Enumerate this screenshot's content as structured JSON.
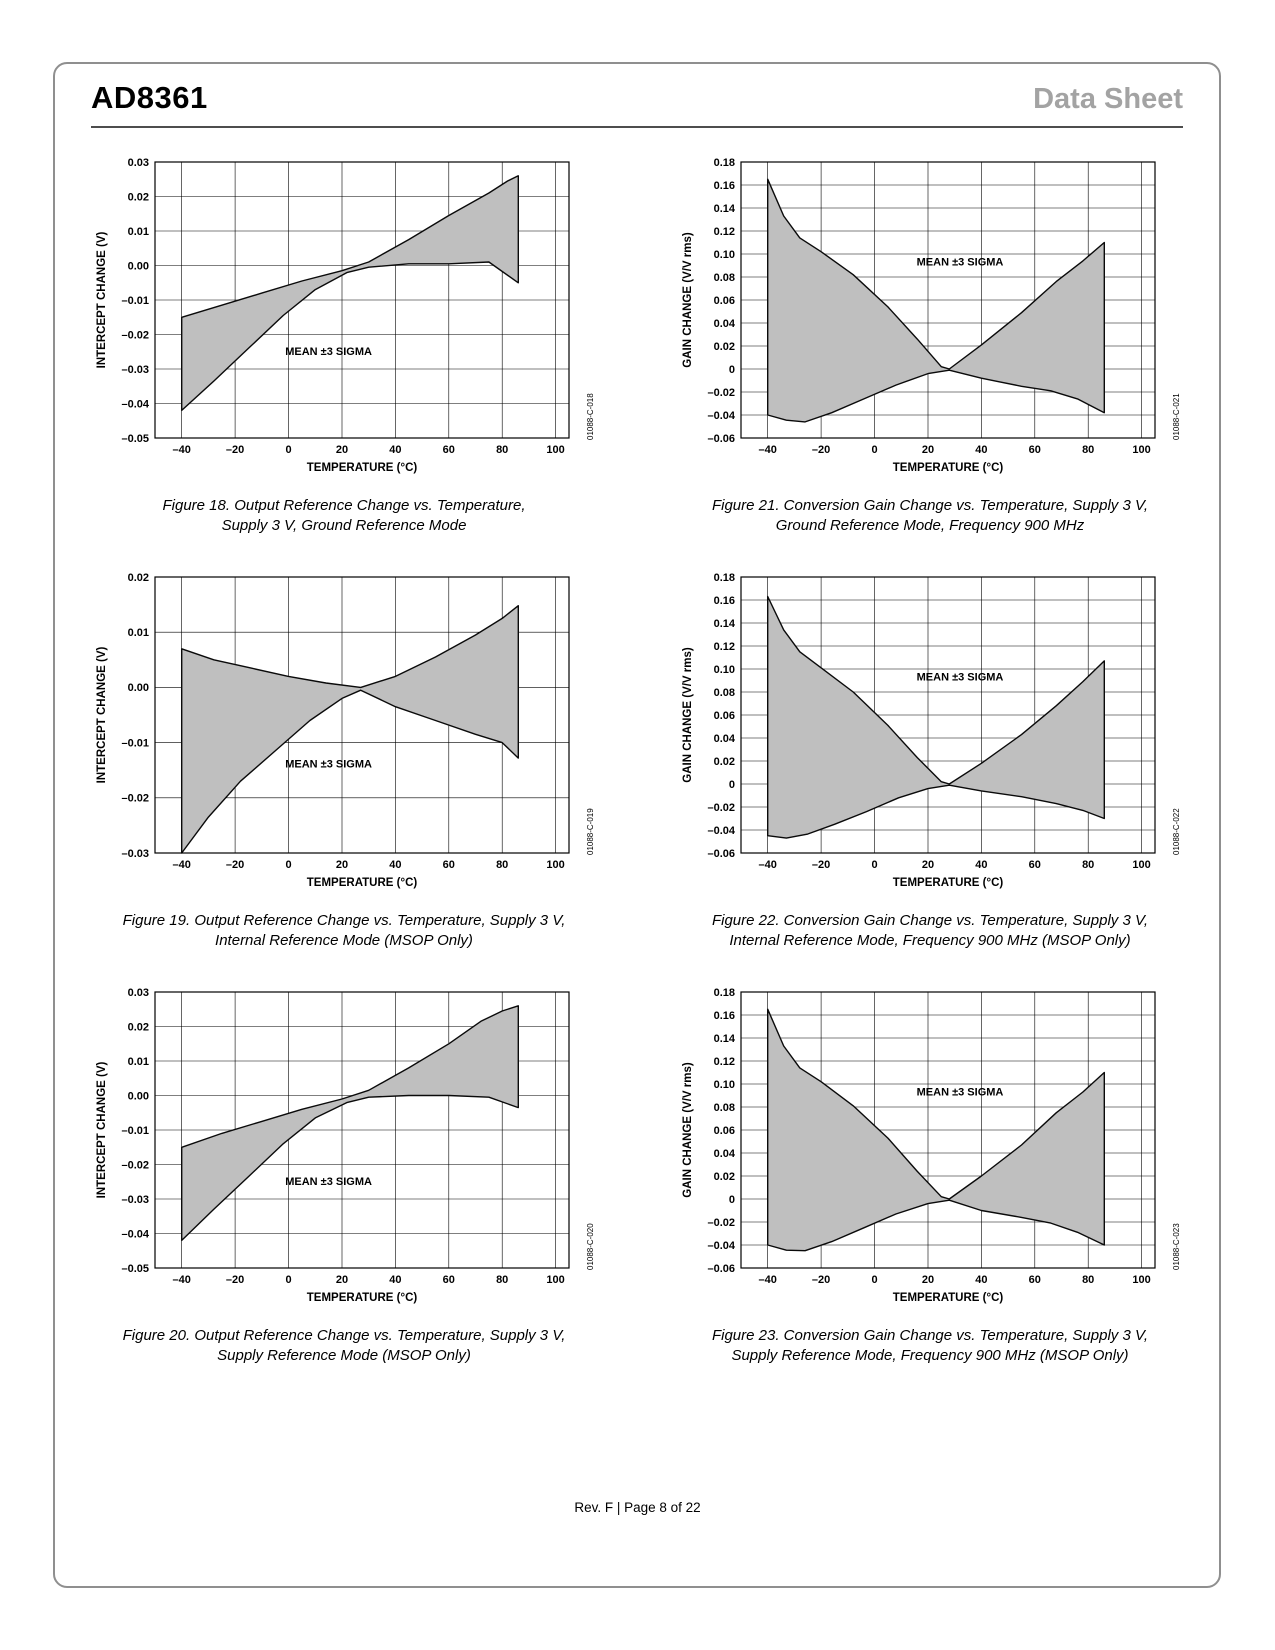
{
  "header": {
    "product": "AD8361",
    "doc_type": "Data Sheet"
  },
  "footer": {
    "text": "Rev. F | Page 8 of 22"
  },
  "colors": {
    "band_fill": "#bfbfbf",
    "band_stroke": "#0a0a0a",
    "grid": "#000000"
  },
  "chart_data": [
    {
      "name": "figure-18",
      "type": "area",
      "code": "01088-C-018",
      "xlabel": "TEMPERATURE (°C)",
      "ylabel": "INTERCEPT CHANGE (V)",
      "xlim": [
        -50,
        105
      ],
      "ylim": [
        -0.05,
        0.03
      ],
      "xticks": [
        -40,
        -20,
        0,
        20,
        40,
        60,
        80,
        100
      ],
      "xtick_labels": [
        "–40",
        "–20",
        "0",
        "20",
        "40",
        "60",
        "80",
        "100"
      ],
      "yticks": [
        0.03,
        0.02,
        0.01,
        0,
        -0.01,
        -0.02,
        -0.03,
        -0.04,
        -0.05
      ],
      "ytick_labels": [
        "0.03",
        "0.02",
        "0.01",
        "0.00",
        "–0.01",
        "–0.02",
        "–0.03",
        "–0.04",
        "–0.05"
      ],
      "annotation": {
        "text": "MEAN ±3 SIGMA",
        "x": 15,
        "y": -0.026
      },
      "series": [
        {
          "name": "mean_plus_3_sigma",
          "points": [
            [
              -40,
              -0.015
            ],
            [
              -25,
              -0.0115
            ],
            [
              -10,
              -0.008
            ],
            [
              5,
              -0.0045
            ],
            [
              20,
              -0.0015
            ],
            [
              30,
              0.001
            ],
            [
              45,
              0.0075
            ],
            [
              60,
              0.0145
            ],
            [
              75,
              0.021
            ],
            [
              82,
              0.0245
            ],
            [
              86,
              0.026
            ]
          ]
        },
        {
          "name": "mean_minus_3_sigma",
          "points": [
            [
              -40,
              -0.042
            ],
            [
              -28,
              -0.0335
            ],
            [
              -15,
              -0.024
            ],
            [
              -2,
              -0.0145
            ],
            [
              10,
              -0.007
            ],
            [
              22,
              -0.002
            ],
            [
              30,
              -0.0005
            ],
            [
              45,
              0.0005
            ],
            [
              60,
              0.0005
            ],
            [
              75,
              0.001
            ],
            [
              86,
              -0.005
            ]
          ]
        }
      ],
      "caption1": "Figure 18. Output Reference Change vs. Temperature,",
      "caption2": "Supply 3 V, Ground Reference Mode"
    },
    {
      "name": "figure-19",
      "type": "area",
      "code": "01088-C-019",
      "xlabel": "TEMPERATURE (°C)",
      "ylabel": "INTERCEPT CHANGE (V)",
      "xlim": [
        -50,
        105
      ],
      "ylim": [
        -0.03,
        0.02
      ],
      "xticks": [
        -40,
        -20,
        0,
        20,
        40,
        60,
        80,
        100
      ],
      "xtick_labels": [
        "–40",
        "–20",
        "0",
        "20",
        "40",
        "60",
        "80",
        "100"
      ],
      "yticks": [
        0.02,
        0.01,
        0,
        -0.01,
        -0.02,
        -0.03
      ],
      "ytick_labels": [
        "0.02",
        "0.01",
        "0.00",
        "–0.01",
        "–0.02",
        "–0.03"
      ],
      "annotation": {
        "text": "MEAN ±3 SIGMA",
        "x": 15,
        "y": -0.0145
      },
      "series": [
        {
          "name": "mean_plus_3_sigma",
          "points": [
            [
              -40,
              0.007
            ],
            [
              -28,
              0.005
            ],
            [
              -14,
              0.0035
            ],
            [
              0,
              0.002
            ],
            [
              14,
              0.0008
            ],
            [
              27,
              0.0
            ],
            [
              40,
              0.002
            ],
            [
              55,
              0.0055
            ],
            [
              70,
              0.0095
            ],
            [
              80,
              0.0125
            ],
            [
              86,
              0.0148
            ]
          ]
        },
        {
          "name": "mean_minus_3_sigma",
          "points": [
            [
              -40,
              -0.03
            ],
            [
              -30,
              -0.0235
            ],
            [
              -18,
              -0.017
            ],
            [
              -5,
              -0.0115
            ],
            [
              8,
              -0.006
            ],
            [
              20,
              -0.002
            ],
            [
              27,
              -0.0005
            ],
            [
              40,
              -0.0035
            ],
            [
              55,
              -0.006
            ],
            [
              70,
              -0.0085
            ],
            [
              80,
              -0.01
            ],
            [
              86,
              -0.0128
            ]
          ]
        }
      ],
      "caption1": "Figure 19. Output Reference Change vs. Temperature, Supply 3 V,",
      "caption2": "Internal Reference Mode (MSOP Only)"
    },
    {
      "name": "figure-20",
      "type": "area",
      "code": "01088-C-020",
      "xlabel": "TEMPERATURE (°C)",
      "ylabel": "INTERCEPT CHANGE (V)",
      "xlim": [
        -50,
        105
      ],
      "ylim": [
        -0.05,
        0.03
      ],
      "xticks": [
        -40,
        -20,
        0,
        20,
        40,
        60,
        80,
        100
      ],
      "xtick_labels": [
        "–40",
        "–20",
        "0",
        "20",
        "40",
        "60",
        "80",
        "100"
      ],
      "yticks": [
        0.03,
        0.02,
        0.01,
        0,
        -0.01,
        -0.02,
        -0.03,
        -0.04,
        -0.05
      ],
      "ytick_labels": [
        "0.03",
        "0.02",
        "0.01",
        "0.00",
        "–0.01",
        "–0.02",
        "–0.03",
        "–0.04",
        "–0.05"
      ],
      "annotation": {
        "text": "MEAN ±3 SIGMA",
        "x": 15,
        "y": -0.026
      },
      "series": [
        {
          "name": "mean_plus_3_sigma",
          "points": [
            [
              -40,
              -0.015
            ],
            [
              -25,
              -0.011
            ],
            [
              -10,
              -0.0075
            ],
            [
              5,
              -0.004
            ],
            [
              20,
              -0.001
            ],
            [
              30,
              0.0015
            ],
            [
              45,
              0.008
            ],
            [
              60,
              0.015
            ],
            [
              72,
              0.0215
            ],
            [
              80,
              0.0245
            ],
            [
              86,
              0.026
            ]
          ]
        },
        {
          "name": "mean_minus_3_sigma",
          "points": [
            [
              -40,
              -0.042
            ],
            [
              -28,
              -0.033
            ],
            [
              -15,
              -0.0235
            ],
            [
              -2,
              -0.014
            ],
            [
              10,
              -0.0065
            ],
            [
              22,
              -0.002
            ],
            [
              30,
              -0.0005
            ],
            [
              45,
              0.0
            ],
            [
              60,
              0.0
            ],
            [
              75,
              -0.0005
            ],
            [
              86,
              -0.0035
            ]
          ]
        }
      ],
      "caption1": "Figure 20. Output Reference Change vs. Temperature, Supply 3 V,",
      "caption2": "Supply Reference Mode (MSOP Only)"
    },
    {
      "name": "figure-21",
      "type": "area",
      "code": "01088-C-021",
      "xlabel": "TEMPERATURE (°C)",
      "ylabel": "GAIN CHANGE (V/V rms)",
      "xlim": [
        -50,
        105
      ],
      "ylim": [
        -0.06,
        0.18
      ],
      "xticks": [
        -40,
        -20,
        0,
        20,
        40,
        60,
        80,
        100
      ],
      "xtick_labels": [
        "–40",
        "–20",
        "0",
        "20",
        "40",
        "60",
        "80",
        "100"
      ],
      "yticks": [
        0.18,
        0.16,
        0.14,
        0.12,
        0.1,
        0.08,
        0.06,
        0.04,
        0.02,
        0,
        -0.02,
        -0.04,
        -0.06
      ],
      "ytick_labels": [
        "0.18",
        "0.16",
        "0.14",
        "0.12",
        "0.10",
        "0.08",
        "0.06",
        "0.04",
        "0.02",
        "0",
        "–0.02",
        "–0.04",
        "–0.06"
      ],
      "annotation": {
        "text": "MEAN ±3 SIGMA",
        "x": 32,
        "y": 0.09
      },
      "series": [
        {
          "name": "mean_plus_3_sigma",
          "points": [
            [
              -40,
              0.165
            ],
            [
              -34,
              0.133
            ],
            [
              -28,
              0.114
            ],
            [
              -20,
              0.102
            ],
            [
              -8,
              0.082
            ],
            [
              5,
              0.054
            ],
            [
              16,
              0.026
            ],
            [
              25,
              0.002
            ],
            [
              28,
              0.0
            ],
            [
              40,
              0.021
            ],
            [
              55,
              0.049
            ],
            [
              68,
              0.076
            ],
            [
              78,
              0.094
            ],
            [
              86,
              0.11
            ]
          ]
        },
        {
          "name": "mean_minus_3_sigma",
          "points": [
            [
              -40,
              -0.04
            ],
            [
              -33,
              -0.0445
            ],
            [
              -26,
              -0.046
            ],
            [
              -16,
              -0.038
            ],
            [
              -4,
              -0.026
            ],
            [
              8,
              -0.014
            ],
            [
              20,
              -0.004
            ],
            [
              28,
              -0.001
            ],
            [
              40,
              -0.008
            ],
            [
              55,
              -0.015
            ],
            [
              66,
              -0.019
            ],
            [
              76,
              -0.026
            ],
            [
              86,
              -0.038
            ]
          ]
        }
      ],
      "caption1": "Figure 21. Conversion Gain Change vs. Temperature, Supply 3 V,",
      "caption2": "Ground Reference Mode, Frequency 900 MHz"
    },
    {
      "name": "figure-22",
      "type": "area",
      "code": "01088-C-022",
      "xlabel": "TEMPERATURE (°C)",
      "ylabel": "GAIN CHANGE (V/V rms)",
      "xlim": [
        -50,
        105
      ],
      "ylim": [
        -0.06,
        0.18
      ],
      "xticks": [
        -40,
        -20,
        0,
        20,
        40,
        60,
        80,
        100
      ],
      "xtick_labels": [
        "–40",
        "–20",
        "0",
        "20",
        "40",
        "60",
        "80",
        "100"
      ],
      "yticks": [
        0.18,
        0.16,
        0.14,
        0.12,
        0.1,
        0.08,
        0.06,
        0.04,
        0.02,
        0,
        -0.02,
        -0.04,
        -0.06
      ],
      "ytick_labels": [
        "0.18",
        "0.16",
        "0.14",
        "0.12",
        "0.10",
        "0.08",
        "0.06",
        "0.04",
        "0.02",
        "0",
        "–0.02",
        "–0.04",
        "–0.06"
      ],
      "annotation": {
        "text": "MEAN ±3 SIGMA",
        "x": 32,
        "y": 0.09
      },
      "series": [
        {
          "name": "mean_plus_3_sigma",
          "points": [
            [
              -40,
              0.163
            ],
            [
              -34,
              0.134
            ],
            [
              -28,
              0.115
            ],
            [
              -20,
              0.101
            ],
            [
              -8,
              0.08
            ],
            [
              5,
              0.051
            ],
            [
              16,
              0.023
            ],
            [
              25,
              0.002
            ],
            [
              28,
              0.0
            ],
            [
              40,
              0.018
            ],
            [
              55,
              0.043
            ],
            [
              68,
              0.068
            ],
            [
              78,
              0.089
            ],
            [
              86,
              0.107
            ]
          ]
        },
        {
          "name": "mean_minus_3_sigma",
          "points": [
            [
              -40,
              -0.045
            ],
            [
              -33,
              -0.047
            ],
            [
              -25,
              -0.0435
            ],
            [
              -15,
              -0.035
            ],
            [
              -3,
              -0.024
            ],
            [
              9,
              -0.012
            ],
            [
              20,
              -0.004
            ],
            [
              28,
              -0.001
            ],
            [
              40,
              -0.006
            ],
            [
              55,
              -0.011
            ],
            [
              68,
              -0.017
            ],
            [
              78,
              -0.023
            ],
            [
              86,
              -0.03
            ]
          ]
        }
      ],
      "caption1": "Figure 22. Conversion Gain Change vs. Temperature, Supply 3 V,",
      "caption2": "Internal Reference Mode, Frequency 900 MHz (MSOP Only)"
    },
    {
      "name": "figure-23",
      "type": "area",
      "code": "01088-C-023",
      "xlabel": "TEMPERATURE (°C)",
      "ylabel": "GAIN CHANGE (V/V rms)",
      "xlim": [
        -50,
        105
      ],
      "ylim": [
        -0.06,
        0.18
      ],
      "xticks": [
        -40,
        -20,
        0,
        20,
        40,
        60,
        80,
        100
      ],
      "xtick_labels": [
        "–40",
        "–20",
        "0",
        "20",
        "40",
        "60",
        "80",
        "100"
      ],
      "yticks": [
        0.18,
        0.16,
        0.14,
        0.12,
        0.1,
        0.08,
        0.06,
        0.04,
        0.02,
        0,
        -0.02,
        -0.04,
        -0.06
      ],
      "ytick_labels": [
        "0.18",
        "0.16",
        "0.14",
        "0.12",
        "0.10",
        "0.08",
        "0.06",
        "0.04",
        "0.02",
        "0",
        "–0.02",
        "–0.04",
        "–0.06"
      ],
      "annotation": {
        "text": "MEAN ±3 SIGMA",
        "x": 32,
        "y": 0.09
      },
      "series": [
        {
          "name": "mean_plus_3_sigma",
          "points": [
            [
              -40,
              0.165
            ],
            [
              -34,
              0.133
            ],
            [
              -28,
              0.114
            ],
            [
              -20,
              0.102
            ],
            [
              -8,
              0.081
            ],
            [
              5,
              0.053
            ],
            [
              16,
              0.024
            ],
            [
              25,
              0.002
            ],
            [
              28,
              0.0
            ],
            [
              40,
              0.02
            ],
            [
              55,
              0.047
            ],
            [
              68,
              0.075
            ],
            [
              78,
              0.093
            ],
            [
              86,
              0.11
            ]
          ]
        },
        {
          "name": "mean_minus_3_sigma",
          "points": [
            [
              -40,
              -0.04
            ],
            [
              -33,
              -0.0445
            ],
            [
              -26,
              -0.045
            ],
            [
              -16,
              -0.037
            ],
            [
              -4,
              -0.025
            ],
            [
              8,
              -0.013
            ],
            [
              20,
              -0.004
            ],
            [
              28,
              -0.001
            ],
            [
              40,
              -0.01
            ],
            [
              55,
              -0.016
            ],
            [
              66,
              -0.021
            ],
            [
              76,
              -0.029
            ],
            [
              86,
              -0.04
            ]
          ]
        }
      ],
      "caption1": "Figure 23. Conversion Gain Change vs. Temperature, Supply 3 V,",
      "caption2": "Supply Reference Mode, Frequency 900 MHz (MSOP Only)"
    }
  ]
}
